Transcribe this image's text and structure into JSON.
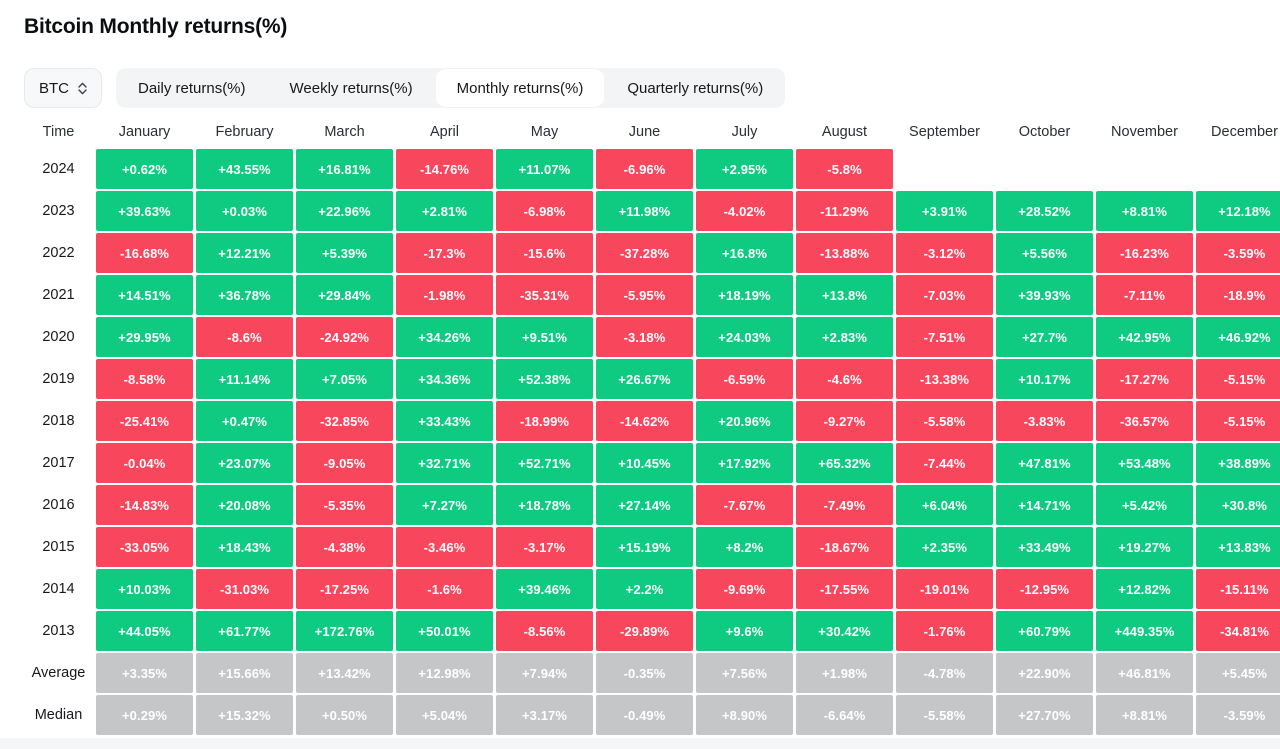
{
  "page": {
    "title": "Bitcoin Monthly returns(%)"
  },
  "controls": {
    "symbol_select": {
      "value": "BTC"
    },
    "tabs": [
      {
        "label": "Daily returns(%)",
        "active": false
      },
      {
        "label": "Weekly returns(%)",
        "active": false
      },
      {
        "label": "Monthly returns(%)",
        "active": true
      },
      {
        "label": "Quarterly returns(%)",
        "active": false
      }
    ]
  },
  "colors": {
    "positive": "#0ECB81",
    "negative": "#F8465D",
    "neutral": "#C5C6C7"
  },
  "chart_data": {
    "type": "heatmap",
    "title": "Bitcoin Monthly returns(%)",
    "time_header": "Time",
    "months": [
      "January",
      "February",
      "March",
      "April",
      "May",
      "June",
      "July",
      "August",
      "September",
      "October",
      "November",
      "December"
    ],
    "rows": [
      {
        "label": "2024",
        "type": "year",
        "values": [
          "+0.62%",
          "+43.55%",
          "+16.81%",
          "-14.76%",
          "+11.07%",
          "-6.96%",
          "+2.95%",
          "-5.8%",
          "",
          "",
          "",
          ""
        ]
      },
      {
        "label": "2023",
        "type": "year",
        "values": [
          "+39.63%",
          "+0.03%",
          "+22.96%",
          "+2.81%",
          "-6.98%",
          "+11.98%",
          "-4.02%",
          "-11.29%",
          "+3.91%",
          "+28.52%",
          "+8.81%",
          "+12.18%"
        ]
      },
      {
        "label": "2022",
        "type": "year",
        "values": [
          "-16.68%",
          "+12.21%",
          "+5.39%",
          "-17.3%",
          "-15.6%",
          "-37.28%",
          "+16.8%",
          "-13.88%",
          "-3.12%",
          "+5.56%",
          "-16.23%",
          "-3.59%"
        ]
      },
      {
        "label": "2021",
        "type": "year",
        "values": [
          "+14.51%",
          "+36.78%",
          "+29.84%",
          "-1.98%",
          "-35.31%",
          "-5.95%",
          "+18.19%",
          "+13.8%",
          "-7.03%",
          "+39.93%",
          "-7.11%",
          "-18.9%"
        ]
      },
      {
        "label": "2020",
        "type": "year",
        "values": [
          "+29.95%",
          "-8.6%",
          "-24.92%",
          "+34.26%",
          "+9.51%",
          "-3.18%",
          "+24.03%",
          "+2.83%",
          "-7.51%",
          "+27.7%",
          "+42.95%",
          "+46.92%"
        ]
      },
      {
        "label": "2019",
        "type": "year",
        "values": [
          "-8.58%",
          "+11.14%",
          "+7.05%",
          "+34.36%",
          "+52.38%",
          "+26.67%",
          "-6.59%",
          "-4.6%",
          "-13.38%",
          "+10.17%",
          "-17.27%",
          "-5.15%"
        ]
      },
      {
        "label": "2018",
        "type": "year",
        "values": [
          "-25.41%",
          "+0.47%",
          "-32.85%",
          "+33.43%",
          "-18.99%",
          "-14.62%",
          "+20.96%",
          "-9.27%",
          "-5.58%",
          "-3.83%",
          "-36.57%",
          "-5.15%"
        ]
      },
      {
        "label": "2017",
        "type": "year",
        "values": [
          "-0.04%",
          "+23.07%",
          "-9.05%",
          "+32.71%",
          "+52.71%",
          "+10.45%",
          "+17.92%",
          "+65.32%",
          "-7.44%",
          "+47.81%",
          "+53.48%",
          "+38.89%"
        ]
      },
      {
        "label": "2016",
        "type": "year",
        "values": [
          "-14.83%",
          "+20.08%",
          "-5.35%",
          "+7.27%",
          "+18.78%",
          "+27.14%",
          "-7.67%",
          "-7.49%",
          "+6.04%",
          "+14.71%",
          "+5.42%",
          "+30.8%"
        ]
      },
      {
        "label": "2015",
        "type": "year",
        "values": [
          "-33.05%",
          "+18.43%",
          "-4.38%",
          "-3.46%",
          "-3.17%",
          "+15.19%",
          "+8.2%",
          "-18.67%",
          "+2.35%",
          "+33.49%",
          "+19.27%",
          "+13.83%"
        ]
      },
      {
        "label": "2014",
        "type": "year",
        "values": [
          "+10.03%",
          "-31.03%",
          "-17.25%",
          "-1.6%",
          "+39.46%",
          "+2.2%",
          "-9.69%",
          "-17.55%",
          "-19.01%",
          "-12.95%",
          "+12.82%",
          "-15.11%"
        ]
      },
      {
        "label": "2013",
        "type": "year",
        "values": [
          "+44.05%",
          "+61.77%",
          "+172.76%",
          "+50.01%",
          "-8.56%",
          "-29.89%",
          "+9.6%",
          "+30.42%",
          "-1.76%",
          "+60.79%",
          "+449.35%",
          "-34.81%"
        ]
      },
      {
        "label": "Average",
        "type": "summary",
        "values": [
          "+3.35%",
          "+15.66%",
          "+13.42%",
          "+12.98%",
          "+7.94%",
          "-0.35%",
          "+7.56%",
          "+1.98%",
          "-4.78%",
          "+22.90%",
          "+46.81%",
          "+5.45%"
        ]
      },
      {
        "label": "Median",
        "type": "summary",
        "values": [
          "+0.29%",
          "+15.32%",
          "+0.50%",
          "+5.04%",
          "+3.17%",
          "-0.49%",
          "+8.90%",
          "-6.64%",
          "-5.58%",
          "+27.70%",
          "+8.81%",
          "-3.59%"
        ]
      }
    ]
  }
}
